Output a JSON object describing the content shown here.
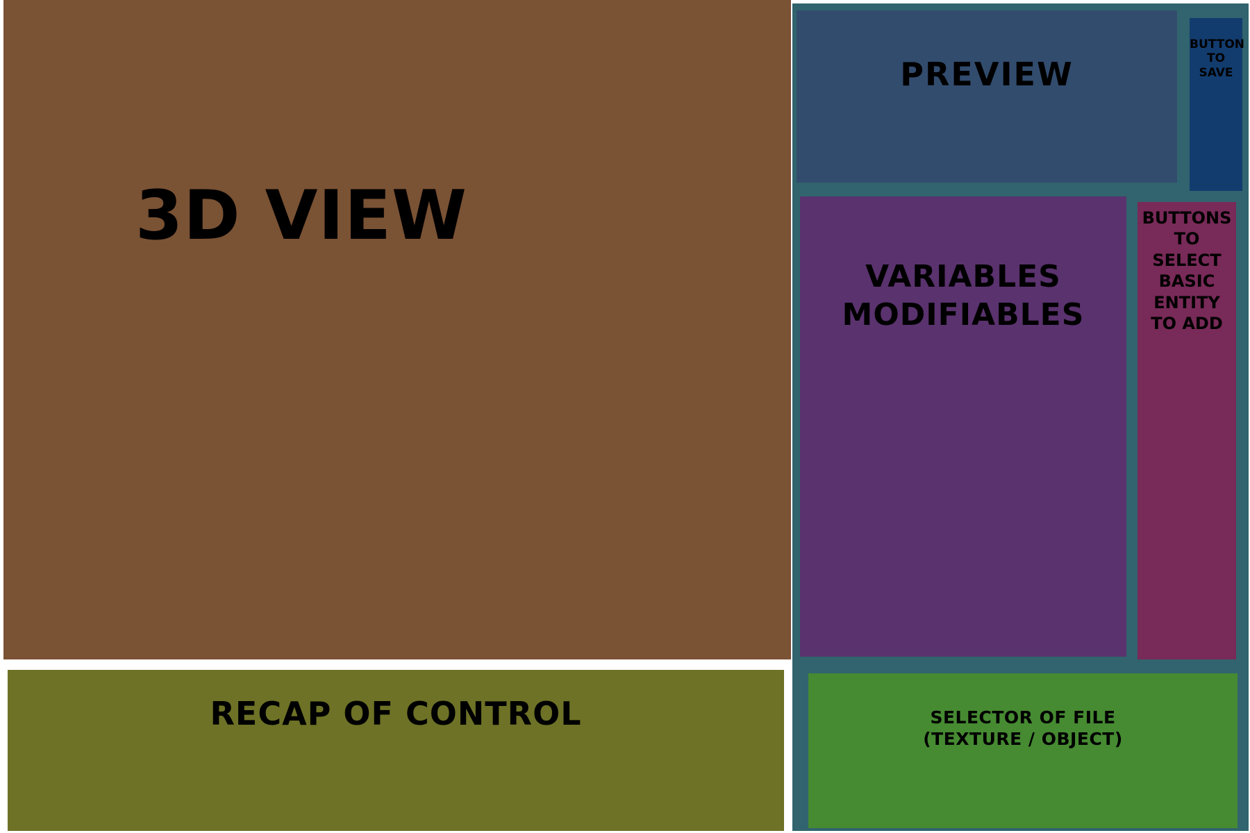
{
  "regions": {
    "view_3d": {
      "label": "3D VIEW",
      "color": "#7a5234"
    },
    "recap": {
      "label": "RECAP OF CONTROL",
      "color": "#6e7226"
    },
    "right_panel": {
      "color": "#31646e"
    },
    "preview": {
      "label": "PREVIEW",
      "color": "#324c6e"
    },
    "save_button": {
      "label": "BUTTON\nTO SAVE",
      "color": "#133c6e"
    },
    "variables": {
      "label": "VARIABLES\nMODIFIABLES",
      "color": "#5a326e"
    },
    "entity_buttons": {
      "label": "BUTTONS\nTO\nSELECT\nBASIC\nENTITY\nTO ADD",
      "color": "#782a58"
    },
    "file_selector": {
      "label": "SELECTOR OF FILE\n(TEXTURE / OBJECT)",
      "color": "#468a32"
    }
  }
}
